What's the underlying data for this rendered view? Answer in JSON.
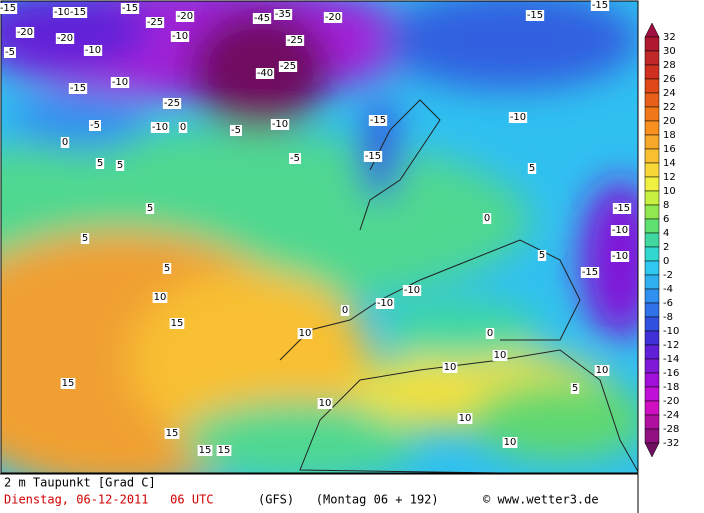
{
  "legend": {
    "labels": [
      32,
      30,
      28,
      26,
      24,
      22,
      20,
      18,
      16,
      14,
      12,
      10,
      8,
      6,
      4,
      2,
      0,
      -2,
      -4,
      -6,
      -8,
      -10,
      -12,
      -14,
      -16,
      -18,
      -20,
      -24,
      -28,
      -32
    ],
    "colors": [
      "#a01040",
      "#b01830",
      "#c02828",
      "#d03020",
      "#e04818",
      "#e86018",
      "#f07818",
      "#f89020",
      "#f8a828",
      "#f8c030",
      "#f8d838",
      "#f0f040",
      "#c8f040",
      "#90e850",
      "#60e070",
      "#40d8a0",
      "#30d8d0",
      "#30c8f0",
      "#30b0f0",
      "#3090f0",
      "#3070e8",
      "#3050e0",
      "#4030d8",
      "#6020d8",
      "#8018d8",
      "#a010d8",
      "#c010d8",
      "#d010c0",
      "#b010a0",
      "#901080",
      "#701060"
    ]
  },
  "map": {
    "labels": [
      "-15",
      "-10",
      "-15",
      "-15",
      "-20",
      "-20",
      "-10",
      "-5",
      "-25",
      "-20",
      "-45",
      "-35",
      "-20",
      "-10",
      "-25",
      "-40",
      "-25",
      "-10",
      "-15",
      "-25",
      "-10",
      "0",
      "-5",
      "-10",
      "-5",
      "-15",
      "-15",
      "-5",
      "0",
      "5",
      "5",
      "5",
      "5",
      "5",
      "10",
      "15",
      "10",
      "0",
      "-10",
      "-10",
      "15",
      "15",
      "15",
      "15",
      "10",
      "10",
      "10",
      "10",
      "5",
      "10",
      "10",
      "-15",
      "-15",
      "-10",
      "0",
      "5",
      "-15",
      "-10",
      "-10",
      "-15",
      "0",
      "5"
    ]
  },
  "footer": {
    "variable": "2 m Taupunkt [Grad C]",
    "date": "Dienstag, 06-12-2011   06 UTC",
    "model": "(GFS)   (Montag 06 + 192)",
    "copyright": "© www.wetter3.de"
  }
}
